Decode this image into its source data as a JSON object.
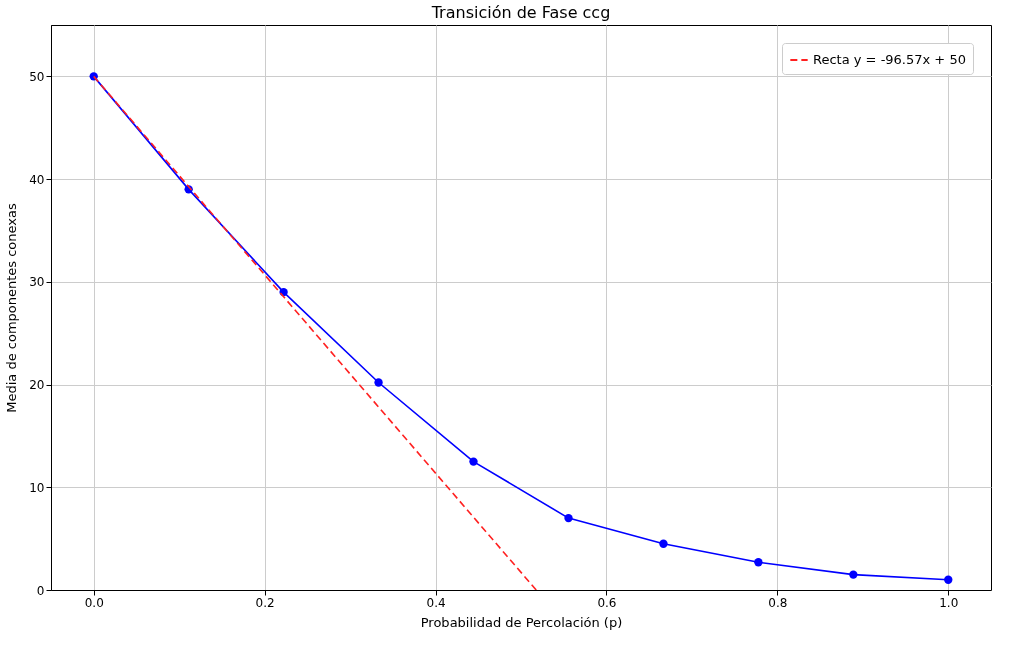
{
  "chart_data": {
    "type": "line",
    "title": "Transición de Fase ccg",
    "xlabel": "Probabilidad de Percolación (p)",
    "ylabel": "Media de componentes conexas",
    "x": [
      0,
      0.1111,
      0.2222,
      0.3333,
      0.4444,
      0.5556,
      0.6667,
      0.7778,
      0.8889,
      1.0
    ],
    "series": [
      {
        "color": "#0000ff",
        "marker": "circle",
        "values": [
          50,
          39,
          29,
          20.2,
          12.5,
          7,
          4.5,
          2.7,
          1.5,
          1.0
        ]
      },
      {
        "name": "Recta y = -96.57x + 50",
        "color": "#ff2020",
        "line_style": "dashed",
        "x": [
          0,
          0.5178
        ],
        "values": [
          50,
          0
        ]
      }
    ],
    "xlim": [
      -0.05,
      1.05
    ],
    "ylim": [
      0,
      55
    ],
    "xticks": [
      {
        "value": 0,
        "label": "0.0"
      },
      0.2,
      0.4,
      0.6,
      0.8,
      {
        "value": 1,
        "label": "1.0"
      }
    ],
    "yticks": [
      0,
      10,
      20,
      30,
      40,
      50
    ],
    "grid": true,
    "legend": "top right"
  }
}
